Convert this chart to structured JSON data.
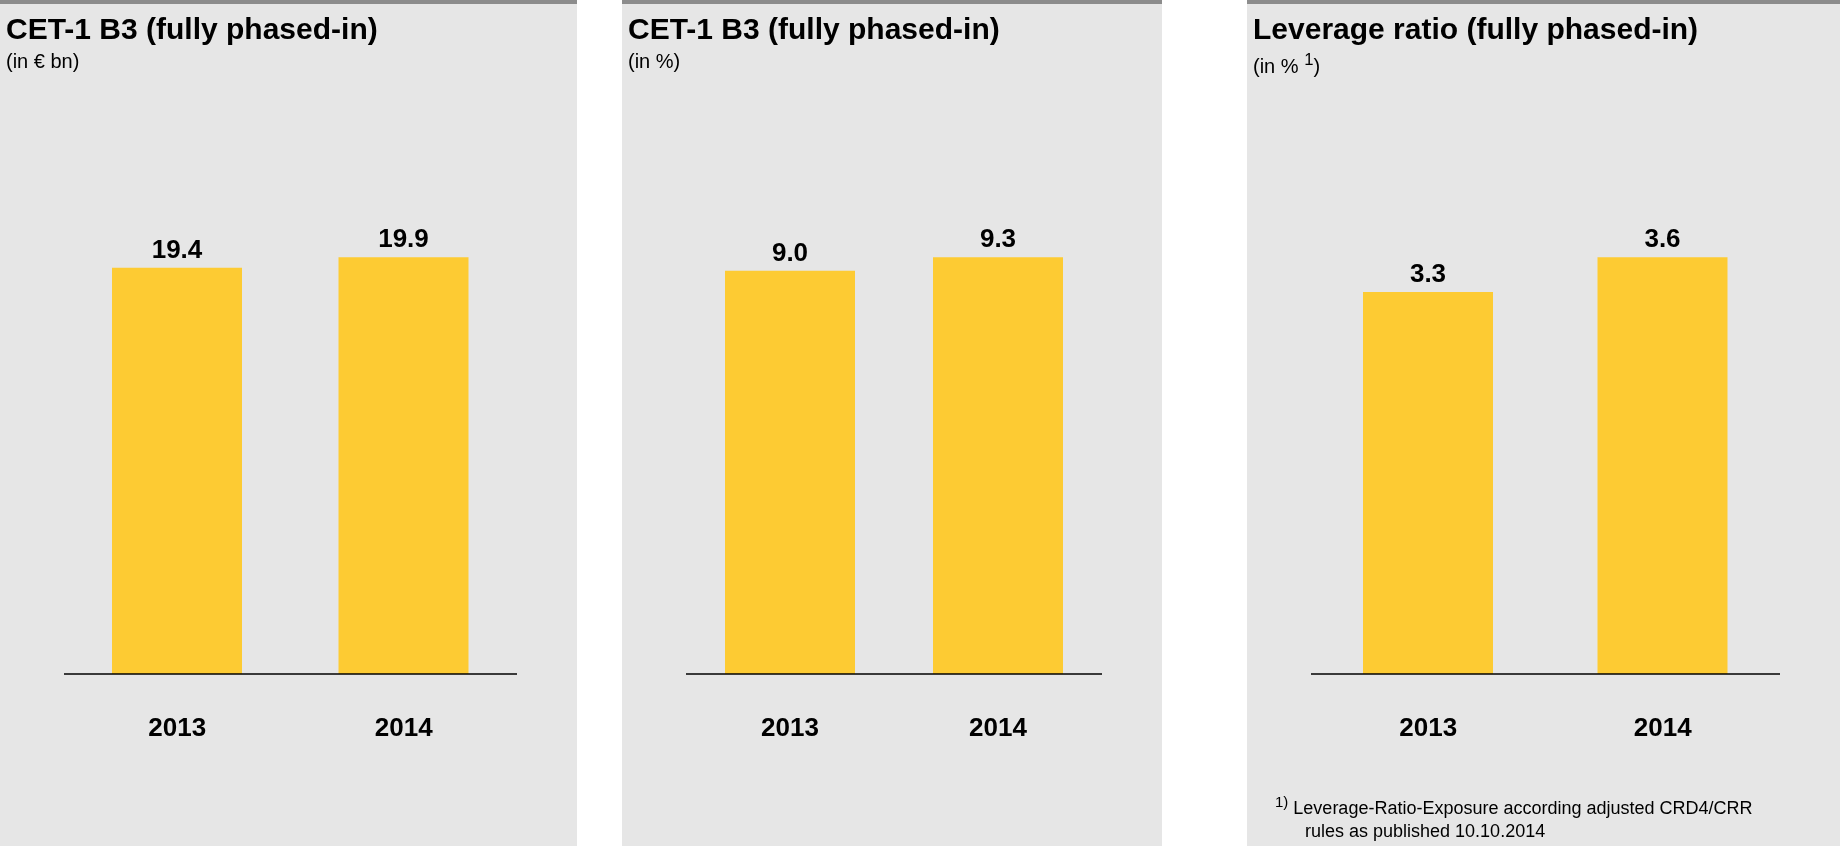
{
  "chart_data": [
    {
      "type": "bar",
      "title": "CET-1 B3 (fully phased-in)",
      "subtitle": "(in € bn)",
      "categories": [
        "2013",
        "2014"
      ],
      "values": [
        19.4,
        19.9
      ],
      "color": "#fdcb33",
      "value_labels": [
        "19.4",
        "19.9"
      ]
    },
    {
      "type": "bar",
      "title": "CET-1 B3 (fully phased-in)",
      "subtitle": "(in %)",
      "categories": [
        "2013",
        "2014"
      ],
      "values": [
        9.0,
        9.3
      ],
      "color": "#fdcb33",
      "value_labels": [
        "9.0",
        "9.3"
      ]
    },
    {
      "type": "bar",
      "title": "Leverage ratio (fully phased-in)",
      "subtitle": "(in % $^{1}$)",
      "categories": [
        "2013",
        "2014"
      ],
      "values": [
        3.3,
        3.6
      ],
      "color": "#fdcb33",
      "value_labels": [
        "3.3",
        "3.6"
      ],
      "annotations": [
        "$^{1)}$  Leverage-Ratio-Exposure according adjusted CRD4/CRR rules as published 10.10.2014"
      ]
    }
  ]
}
